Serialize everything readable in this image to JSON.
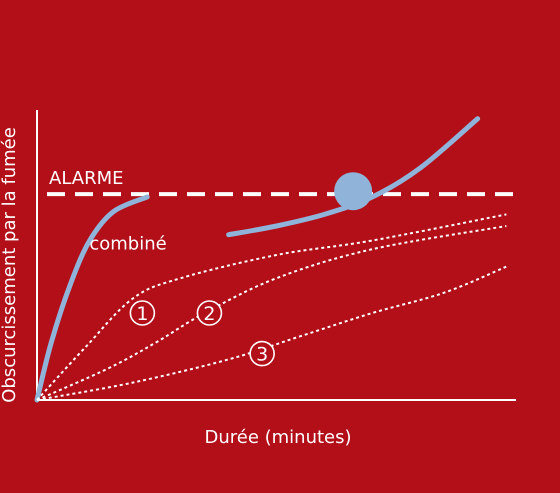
{
  "chart_data": {
    "type": "line",
    "title": "",
    "xlabel": "Durée (minutes)",
    "ylabel": "Obscurcissement par la fumée",
    "xlim": [
      0,
      100
    ],
    "ylim": [
      0,
      100
    ],
    "grid": false,
    "threshold": {
      "label": "ALARME",
      "value": 71,
      "style": "dashed"
    },
    "series": [
      {
        "name": "combiné",
        "style": "solid",
        "color": "#8fb3d9",
        "segments": [
          {
            "x": [
              0,
              3,
              7,
              11,
              16,
              23
            ],
            "y": [
              0,
              20,
              40,
              55,
              65,
              70
            ]
          },
          {
            "x": [
              40,
              50,
              60,
              70,
              80,
              92
            ],
            "y": [
              57,
              60,
              64,
              70,
              80,
              97
            ]
          }
        ]
      },
      {
        "name": "1",
        "style": "dotted",
        "color": "#ffffff",
        "x": [
          0,
          10,
          20,
          30,
          50,
          70,
          98
        ],
        "y": [
          0,
          18,
          35,
          42,
          50,
          55,
          64
        ]
      },
      {
        "name": "2",
        "style": "dotted",
        "color": "#ffffff",
        "x": [
          0,
          15,
          25,
          35,
          50,
          70,
          98
        ],
        "y": [
          0,
          11,
          20,
          30,
          42,
          52,
          60
        ]
      },
      {
        "name": "3",
        "style": "dotted",
        "color": "#ffffff",
        "x": [
          0,
          20,
          40,
          55,
          70,
          85,
          98
        ],
        "y": [
          0,
          6,
          14,
          22,
          30,
          37,
          46
        ]
      }
    ],
    "marker": {
      "x": 66,
      "y": 72
    },
    "series_labels": [
      {
        "text": "combiné",
        "x": 19,
        "y": 54
      },
      {
        "text": "1",
        "x": 22,
        "y": 30,
        "circled": true
      },
      {
        "text": "2",
        "x": 36,
        "y": 30,
        "circled": true
      },
      {
        "text": "3",
        "x": 47,
        "y": 16,
        "circled": true
      }
    ]
  },
  "colors": {
    "background": "#b20f19",
    "axis": "#ffffff",
    "combined_curve": "#8fb3d9",
    "marker": "#8fb3d9"
  }
}
